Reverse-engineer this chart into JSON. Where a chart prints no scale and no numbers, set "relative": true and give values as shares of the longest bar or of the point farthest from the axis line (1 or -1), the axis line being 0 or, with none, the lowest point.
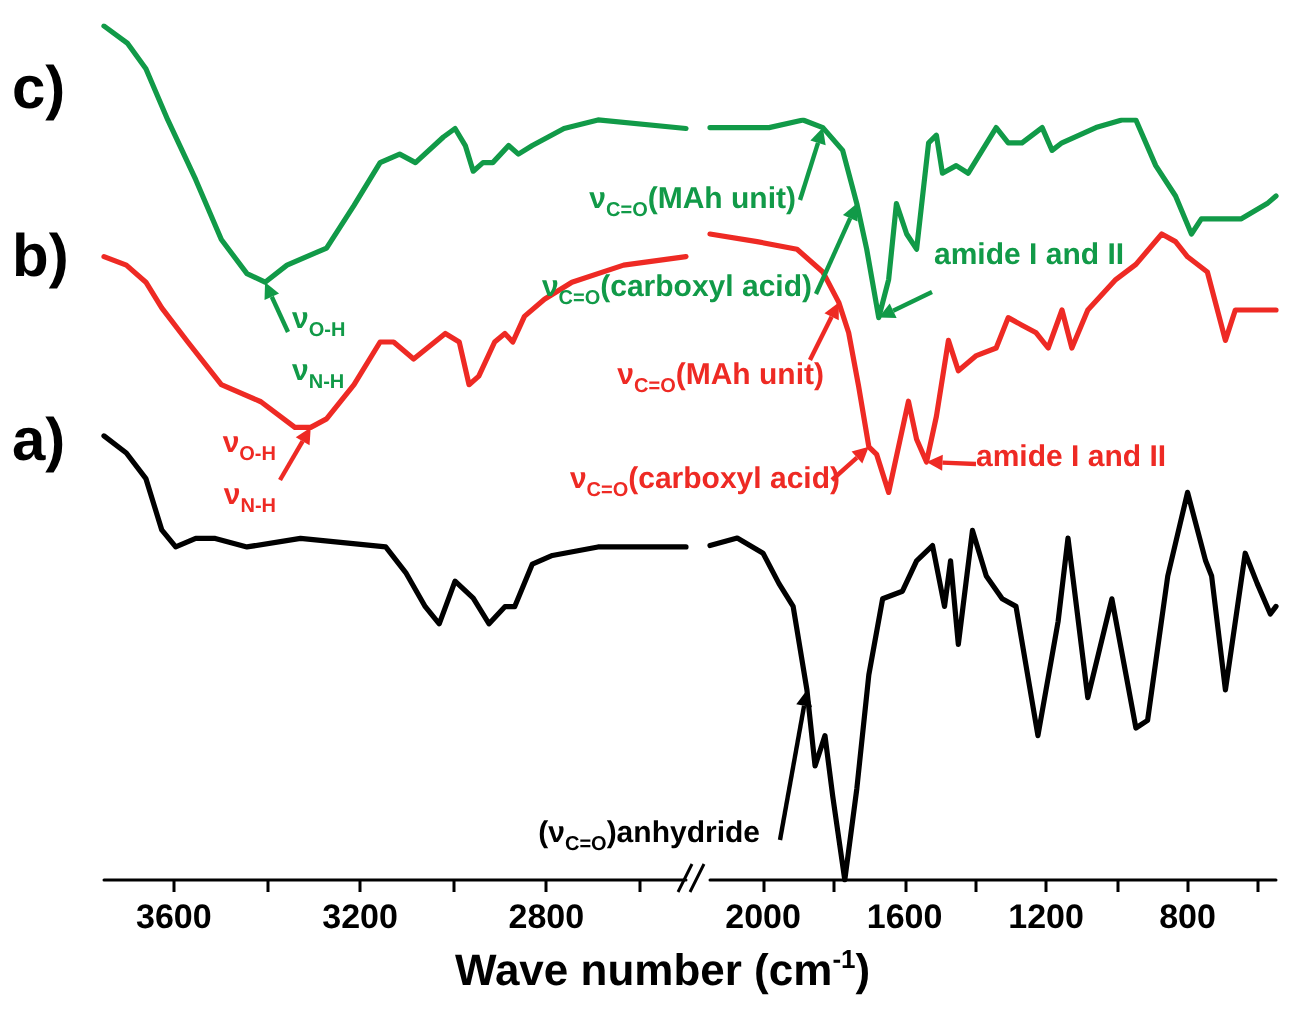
{
  "chart_data": [
    {
      "type": "line",
      "relative": true,
      "xlabel": "Wave number (cm$^{-1}$)",
      "xlim": [
        3750,
        2500
      ],
      "xticks": [
        3600,
        {
          "value": 3400,
          "label": null
        },
        3200,
        {
          "value": 3000,
          "label": null
        },
        2800,
        {
          "value": 2600,
          "label": null
        }
      ],
      "series": [
        {
          "name": "a)",
          "color": "#000000",
          "x": [
            3750,
            3702,
            3660,
            3626,
            3596,
            3553,
            3511,
            3443,
            3328,
            3145,
            3102,
            3060,
            3030,
            2996,
            2957,
            2923,
            2889,
            2868,
            2830,
            2787,
            2689,
            2500
          ],
          "values": [
            0.52,
            0.5,
            0.47,
            0.41,
            0.39,
            0.4,
            0.4,
            0.39,
            0.4,
            0.39,
            0.36,
            0.32,
            0.3,
            0.35,
            0.33,
            0.3,
            0.32,
            0.32,
            0.37,
            0.38,
            0.39,
            0.39
          ]
        },
        {
          "name": "b)",
          "color": "#ee2a24",
          "x": [
            3750,
            3702,
            3660,
            3626,
            3570,
            3498,
            3413,
            3340,
            3306,
            3272,
            3213,
            3157,
            3128,
            3085,
            3017,
            2987,
            2966,
            2945,
            2911,
            2889,
            2872,
            2847,
            2804,
            2745,
            2634,
            2500
          ],
          "values": [
            0.73,
            0.72,
            0.7,
            0.67,
            0.63,
            0.58,
            0.56,
            0.53,
            0.53,
            0.54,
            0.58,
            0.63,
            0.63,
            0.61,
            0.64,
            0.63,
            0.58,
            0.59,
            0.63,
            0.64,
            0.63,
            0.66,
            0.68,
            0.7,
            0.72,
            0.73
          ]
        },
        {
          "name": "c)",
          "color": "#119a48",
          "x": [
            3750,
            3700,
            3660,
            3613,
            3553,
            3498,
            3443,
            3404,
            3357,
            3272,
            3213,
            3157,
            3115,
            3081,
            3021,
            2996,
            2974,
            2957,
            2936,
            2915,
            2881,
            2860,
            2830,
            2762,
            2689,
            2500
          ],
          "values": [
            1.0,
            0.98,
            0.95,
            0.89,
            0.82,
            0.75,
            0.71,
            0.7,
            0.72,
            0.74,
            0.79,
            0.84,
            0.85,
            0.84,
            0.87,
            0.88,
            0.86,
            0.83,
            0.84,
            0.84,
            0.86,
            0.85,
            0.86,
            0.88,
            0.89,
            0.88
          ]
        }
      ],
      "annotations": [
        {
          "text": "ν$_{O-H}$\nν$_{N-H}$",
          "x": 3404,
          "y": 0.7
        },
        {
          "text": "ν$_{O-H}$\nν$_{N-H}$",
          "x": 3306,
          "y": 0.53
        }
      ]
    },
    {
      "type": "line",
      "relative": true,
      "xlim": [
        2150,
        550
      ],
      "xticks": [
        2000,
        {
          "value": 1800,
          "label": null
        },
        1600,
        {
          "value": 1400,
          "label": null
        },
        1200,
        {
          "value": 1000,
          "label": null
        },
        800,
        {
          "value": 600,
          "label": null
        }
      ],
      "series": [
        {
          "name": null,
          "color": "#000000",
          "x": [
            2150,
            2073,
            2000,
            1955,
            1915,
            1876,
            1853,
            1825,
            1803,
            1769,
            1735,
            1701,
            1662,
            1606,
            1566,
            1521,
            1487,
            1470,
            1448,
            1408,
            1369,
            1324,
            1285,
            1223,
            1166,
            1138,
            1082,
            1014,
            946,
            913,
            856,
            800,
            749,
            732,
            693,
            637,
            603,
            566,
            550
          ],
          "values": [
            0.44,
            0.45,
            0.43,
            0.39,
            0.36,
            0.25,
            0.15,
            0.19,
            0.11,
            0.0,
            0.12,
            0.27,
            0.37,
            0.38,
            0.42,
            0.44,
            0.36,
            0.42,
            0.31,
            0.46,
            0.4,
            0.37,
            0.36,
            0.19,
            0.34,
            0.45,
            0.24,
            0.37,
            0.2,
            0.21,
            0.4,
            0.51,
            0.42,
            0.4,
            0.25,
            0.43,
            0.39,
            0.35,
            0.36
          ]
        },
        {
          "name": null,
          "color": "#ee2a24",
          "x": [
            2150,
            2017,
            1904,
            1831,
            1786,
            1758,
            1730,
            1701,
            1679,
            1645,
            1617,
            1589,
            1566,
            1538,
            1510,
            1476,
            1448,
            1397,
            1341,
            1307,
            1268,
            1228,
            1194,
            1155,
            1127,
            1082,
            1003,
            946,
            873,
            834,
            800,
            744,
            693,
            665,
            592,
            550
          ],
          "values": [
            0.85,
            0.84,
            0.83,
            0.8,
            0.76,
            0.72,
            0.65,
            0.57,
            0.56,
            0.51,
            0.57,
            0.63,
            0.58,
            0.55,
            0.61,
            0.71,
            0.67,
            0.69,
            0.7,
            0.74,
            0.73,
            0.72,
            0.7,
            0.75,
            0.7,
            0.75,
            0.79,
            0.81,
            0.85,
            0.84,
            0.82,
            0.8,
            0.71,
            0.75,
            0.75,
            0.75
          ]
        },
        {
          "name": null,
          "color": "#119a48",
          "x": [
            2150,
            1983,
            1887,
            1831,
            1775,
            1735,
            1707,
            1673,
            1645,
            1623,
            1594,
            1566,
            1532,
            1510,
            1493,
            1454,
            1420,
            1341,
            1307,
            1268,
            1211,
            1183,
            1155,
            1059,
            986,
            946,
            890,
            834,
            789,
            761,
            648,
            575,
            550
          ],
          "values": [
            0.99,
            0.99,
            1.0,
            0.99,
            0.96,
            0.89,
            0.83,
            0.74,
            0.79,
            0.89,
            0.85,
            0.83,
            0.97,
            0.98,
            0.93,
            0.94,
            0.93,
            0.99,
            0.97,
            0.97,
            0.99,
            0.96,
            0.97,
            0.99,
            1.0,
            1.0,
            0.94,
            0.9,
            0.85,
            0.87,
            0.87,
            0.89,
            0.9
          ]
        }
      ],
      "annotations": [
        {
          "text": "ν$_{C=O}$(MAh unit)",
          "x": 1831,
          "y": 0.99
        },
        {
          "text": "ν$_{C=O}$(carboxyl acid)",
          "x": 1735,
          "y": 0.89
        },
        {
          "text": "amide I and II",
          "x": 1673,
          "y": 0.74
        },
        {
          "text": "ν$_{C=O}$(MAh unit)",
          "x": 1786,
          "y": 0.76
        },
        {
          "text": "ν$_{C=O}$(carboxyl acid)",
          "x": 1701,
          "y": 0.57
        },
        {
          "text": "amide I and II",
          "x": 1538,
          "y": 0.55
        },
        {
          "text": "(ν$_{C=O}$)anhydride",
          "x": 1876,
          "y": 0.25
        }
      ]
    }
  ]
}
